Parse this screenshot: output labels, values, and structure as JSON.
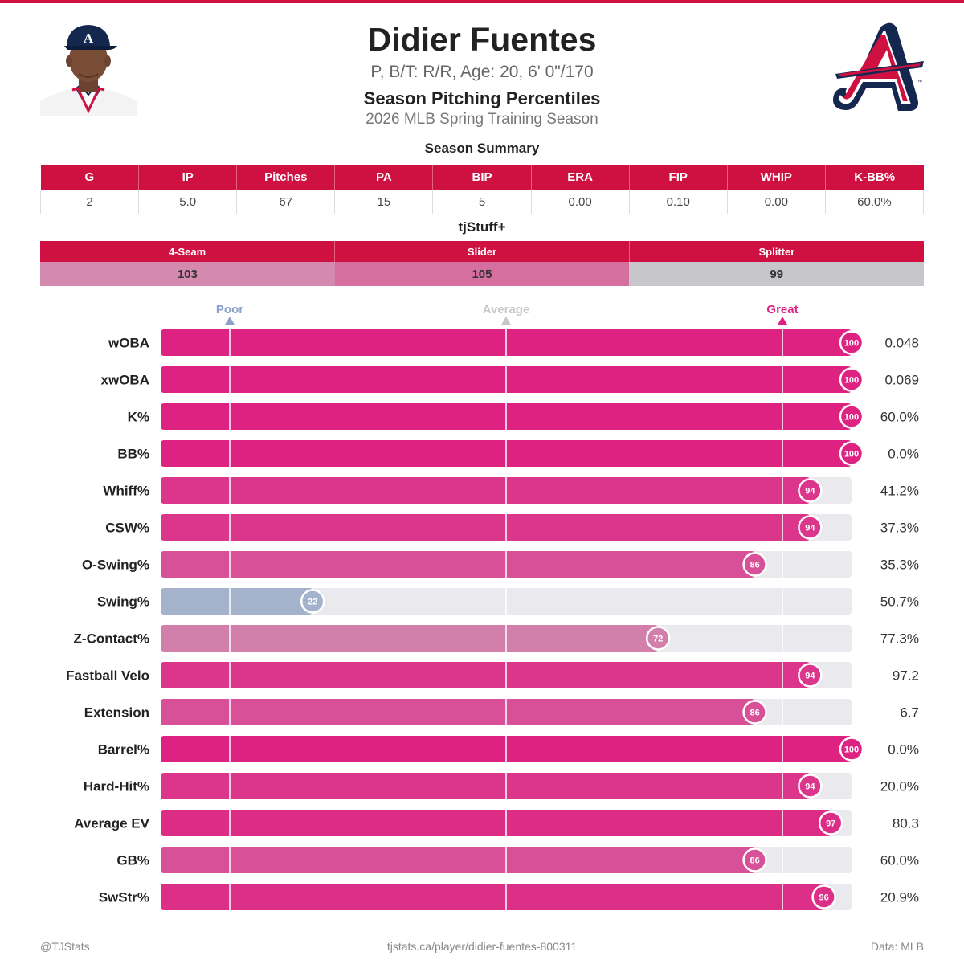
{
  "header": {
    "name": "Didier Fuentes",
    "bio": "P, B/T: R/R, Age: 20, 6' 0\"/170",
    "subtitle": "Season Pitching Percentiles",
    "season": "2026 MLB Spring Training Season"
  },
  "colors": {
    "accent": "#ce1141",
    "navy": "#13274f",
    "great": "#de2282",
    "poor": "#8aa1cb",
    "average": "#c8c8cc",
    "track": "#e9e9ee"
  },
  "summary": {
    "title": "Season Summary",
    "headers": [
      "G",
      "IP",
      "Pitches",
      "PA",
      "BIP",
      "ERA",
      "FIP",
      "WHIP",
      "K-BB%"
    ],
    "values": [
      "2",
      "5.0",
      "67",
      "15",
      "5",
      "0.00",
      "0.10",
      "0.00",
      "60.0%"
    ]
  },
  "tjstuff": {
    "title": "tjStuff+",
    "headers": [
      "4-Seam",
      "Slider",
      "Splitter"
    ],
    "values": [
      "103",
      "105",
      "99"
    ],
    "cell_colors": [
      "#d38aae",
      "#d46fa0",
      "#c6c6cb"
    ]
  },
  "chart_data": {
    "type": "bar",
    "orientation": "horizontal",
    "scale_labels": {
      "poor": "Poor",
      "average": "Average",
      "great": "Great"
    },
    "reference_lines": [
      10,
      50,
      90
    ],
    "xlim": [
      0,
      100
    ],
    "categories": [
      "wOBA",
      "xwOBA",
      "K%",
      "BB%",
      "Whiff%",
      "CSW%",
      "O-Swing%",
      "Swing%",
      "Z-Contact%",
      "Fastball Velo",
      "Extension",
      "Barrel%",
      "Hard-Hit%",
      "Average EV",
      "GB%",
      "SwStr%"
    ],
    "percentiles": [
      100,
      100,
      100,
      100,
      94,
      94,
      86,
      22,
      72,
      94,
      86,
      100,
      94,
      97,
      86,
      96
    ],
    "stat_values": [
      "0.048",
      "0.069",
      "60.0%",
      "0.0%",
      "41.2%",
      "37.3%",
      "35.3%",
      "50.7%",
      "77.3%",
      "97.2",
      "6.7",
      "0.0%",
      "20.0%",
      "80.3",
      "60.0%",
      "20.9%"
    ]
  },
  "footer": {
    "left": "@TJStats",
    "center": "tjstats.ca/player/didier-fuentes-800311",
    "right": "Data: MLB"
  }
}
